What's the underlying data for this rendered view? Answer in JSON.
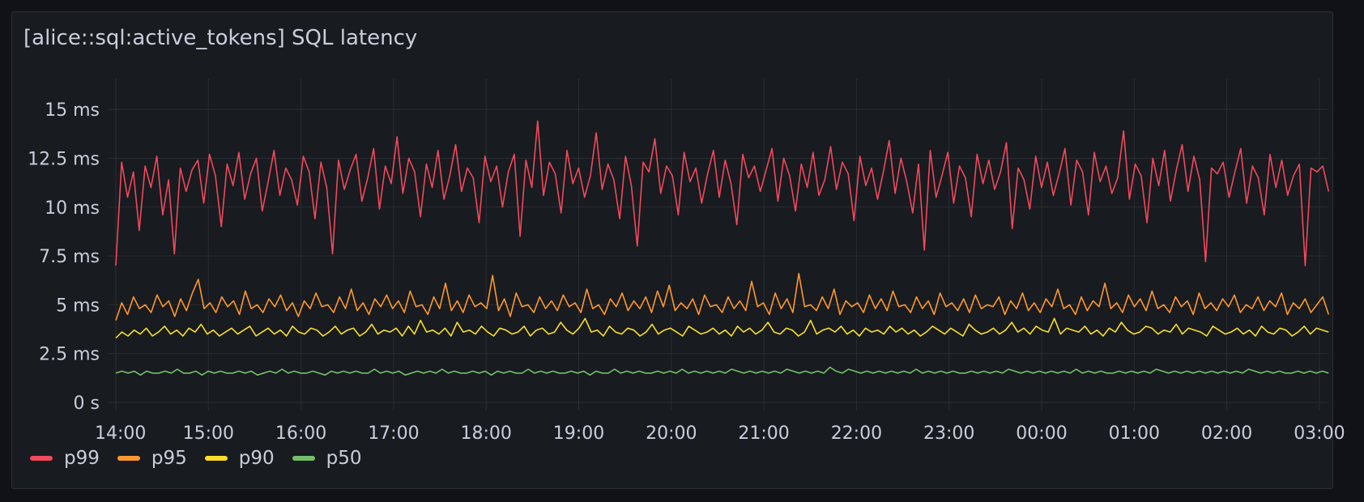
{
  "panel": {
    "title": "[alice::sql:active_tokens] SQL latency"
  },
  "legend": [
    {
      "label": "p99",
      "color": "#f2495c"
    },
    {
      "label": "p95",
      "color": "#ff9830"
    },
    {
      "label": "p90",
      "color": "#fade2a"
    },
    {
      "label": "p50",
      "color": "#73bf69"
    }
  ],
  "chart_data": {
    "type": "line",
    "title": "[alice::sql:active_tokens] SQL latency",
    "x_ticks": [
      "14:00",
      "15:00",
      "16:00",
      "17:00",
      "18:00",
      "19:00",
      "20:00",
      "21:00",
      "22:00",
      "23:00",
      "00:00",
      "01:00",
      "02:00",
      "03:00"
    ],
    "y_ticks": [
      "0 s",
      "2.5 ms",
      "5 ms",
      "7.5 ms",
      "10 ms",
      "12.5 ms",
      "15 ms"
    ],
    "y_tick_values": [
      0,
      2.5,
      5,
      7.5,
      10,
      12.5,
      15
    ],
    "ylim": [
      0,
      16
    ],
    "y_unit": "ms",
    "x_range_hours": [
      0,
      13.1
    ],
    "grid": true,
    "legend_position": "bottom-left",
    "series": [
      {
        "name": "p99",
        "color": "#f2495c",
        "values": [
          7.0,
          12.3,
          10.5,
          11.8,
          8.8,
          12.1,
          11.0,
          12.6,
          9.6,
          11.4,
          7.6,
          12.0,
          10.8,
          11.9,
          12.4,
          10.2,
          12.7,
          11.6,
          9.0,
          12.2,
          11.1,
          12.8,
          10.4,
          11.7,
          12.5,
          9.8,
          11.3,
          12.9,
          10.6,
          12.0,
          11.4,
          10.1,
          12.6,
          11.8,
          9.4,
          12.3,
          11.0,
          7.6,
          12.4,
          10.9,
          11.9,
          12.7,
          10.3,
          11.5,
          13.0,
          9.9,
          12.1,
          11.2,
          13.6,
          10.7,
          12.5,
          11.8,
          9.5,
          12.2,
          11.0,
          12.9,
          10.4,
          11.6,
          13.2,
          10.8,
          12.0,
          11.5,
          9.2,
          12.6,
          11.3,
          12.1,
          10.0,
          11.8,
          12.7,
          8.5,
          12.4,
          11.0,
          14.4,
          10.6,
          12.3,
          11.7,
          9.7,
          12.9,
          11.2,
          12.0,
          10.5,
          11.6,
          13.8,
          10.9,
          12.2,
          11.4,
          9.4,
          12.6,
          11.1,
          8.0,
          12.3,
          11.8,
          13.5,
          10.7,
          12.1,
          11.6,
          9.6,
          12.8,
          11.3,
          12.0,
          10.2,
          11.7,
          12.9,
          10.5,
          12.4,
          11.2,
          9.1,
          12.7,
          11.5,
          12.1,
          10.8,
          11.9,
          13.0,
          10.3,
          12.5,
          11.6,
          9.8,
          12.2,
          11.0,
          12.8,
          10.6,
          11.4,
          13.1,
          10.9,
          12.3,
          11.7,
          9.3,
          12.6,
          11.1,
          12.0,
          10.4,
          11.8,
          13.4,
          10.7,
          12.5,
          11.3,
          9.7,
          12.2,
          7.8,
          12.9,
          10.5,
          11.6,
          12.8,
          10.2,
          12.1,
          11.5,
          9.5,
          12.7,
          11.2,
          12.4,
          10.9,
          11.8,
          13.3,
          8.9,
          12.0,
          11.4,
          9.9,
          12.6,
          11.0,
          12.3,
          10.6,
          11.7,
          13.0,
          10.1,
          12.4,
          11.8,
          9.6,
          12.8,
          11.3,
          12.1,
          10.7,
          11.5,
          13.9,
          10.4,
          12.2,
          11.6,
          9.2,
          12.5,
          11.1,
          12.9,
          10.3,
          11.9,
          13.2,
          10.8,
          12.6,
          11.4,
          7.2,
          12.0,
          11.7,
          12.3,
          10.5,
          11.8,
          13.0,
          10.2,
          12.1,
          11.5,
          9.6,
          12.7,
          11.0,
          12.4,
          10.6,
          11.6,
          12.2,
          7.0,
          12.0,
          11.8,
          12.1,
          10.8
        ]
      },
      {
        "name": "p95",
        "color": "#ff9830",
        "values": [
          4.2,
          5.1,
          4.5,
          5.4,
          4.8,
          5.0,
          4.6,
          5.5,
          4.9,
          5.2,
          4.4,
          5.3,
          4.7,
          5.6,
          6.3,
          4.8,
          5.1,
          4.6,
          5.4,
          4.9,
          5.2,
          4.5,
          5.7,
          4.8,
          5.0,
          4.6,
          5.3,
          4.9,
          5.5,
          4.7,
          5.1,
          4.4,
          5.2,
          4.8,
          5.6,
          4.9,
          5.0,
          4.6,
          5.4,
          4.8,
          5.8,
          4.7,
          5.1,
          4.5,
          5.3,
          4.9,
          5.5,
          4.8,
          5.2,
          4.6,
          5.7,
          4.9,
          5.0,
          4.5,
          5.4,
          4.8,
          6.1,
          4.7,
          5.2,
          4.6,
          5.5,
          4.9,
          5.1,
          4.8,
          6.5,
          4.7,
          5.3,
          4.4,
          5.6,
          4.9,
          5.0,
          4.6,
          5.4,
          4.8,
          5.2,
          4.7,
          5.5,
          4.9,
          5.1,
          4.6,
          5.8,
          4.8,
          5.0,
          4.5,
          5.3,
          4.9,
          5.6,
          4.7,
          5.2,
          4.8,
          5.4,
          4.6,
          5.7,
          4.9,
          6.0,
          4.7,
          5.1,
          4.8,
          5.3,
          4.5,
          5.5,
          4.9,
          5.0,
          4.6,
          5.4,
          4.8,
          5.2,
          4.7,
          6.2,
          4.9,
          5.1,
          4.5,
          5.6,
          4.8,
          5.3,
          4.6,
          6.6,
          4.9,
          5.0,
          4.7,
          5.4,
          4.8,
          5.8,
          4.5,
          5.2,
          4.9,
          5.1,
          4.6,
          5.5,
          4.8,
          5.3,
          4.7,
          5.7,
          4.9,
          5.0,
          4.6,
          5.4,
          4.8,
          5.2,
          4.5,
          5.6,
          4.9,
          5.1,
          4.7,
          5.3,
          4.6,
          5.5,
          4.8,
          5.0,
          4.9,
          5.4,
          4.5,
          5.2,
          4.8,
          5.6,
          4.7,
          5.1,
          4.6,
          5.3,
          4.9,
          5.8,
          4.8,
          5.0,
          4.5,
          5.4,
          4.7,
          5.2,
          4.9,
          6.1,
          4.8,
          5.1,
          4.6,
          5.5,
          4.9,
          5.3,
          4.7,
          5.7,
          4.8,
          5.0,
          4.6,
          5.4,
          4.9,
          5.2,
          4.5,
          5.6,
          4.8,
          5.1,
          4.7,
          5.3,
          4.9,
          5.5,
          4.6,
          5.0,
          4.8,
          5.4,
          4.7,
          5.2,
          4.9,
          5.6,
          4.5,
          5.1,
          4.8,
          5.3,
          4.6,
          5.0,
          5.4,
          4.5
        ]
      },
      {
        "name": "p90",
        "color": "#fade2a",
        "values": [
          3.3,
          3.6,
          3.4,
          3.7,
          3.5,
          3.8,
          3.4,
          3.6,
          3.9,
          3.5,
          3.7,
          3.4,
          3.8,
          3.6,
          4.0,
          3.5,
          3.7,
          3.4,
          3.6,
          3.8,
          3.5,
          3.7,
          3.9,
          3.4,
          3.6,
          3.8,
          3.5,
          3.7,
          3.4,
          3.9,
          3.6,
          3.5,
          3.8,
          3.7,
          3.4,
          3.6,
          3.9,
          3.5,
          3.7,
          3.8,
          3.4,
          3.6,
          4.0,
          3.5,
          3.7,
          3.6,
          3.8,
          3.4,
          3.9,
          3.5,
          4.2,
          3.6,
          3.7,
          3.5,
          3.8,
          3.4,
          4.1,
          3.6,
          3.7,
          3.5,
          3.9,
          3.6,
          3.4,
          3.8,
          3.7,
          3.5,
          3.6,
          3.9,
          3.4,
          3.7,
          3.8,
          3.5,
          3.6,
          4.1,
          3.7,
          3.5,
          3.8,
          4.3,
          3.6,
          3.7,
          3.4,
          3.9,
          3.6,
          3.5,
          3.8,
          3.7,
          3.4,
          3.6,
          4.0,
          3.5,
          3.7,
          3.8,
          3.6,
          3.4,
          3.9,
          3.7,
          3.5,
          3.6,
          3.8,
          3.5,
          3.7,
          3.4,
          3.9,
          3.6,
          3.8,
          3.5,
          3.7,
          4.1,
          3.6,
          3.5,
          3.8,
          3.7,
          3.4,
          3.6,
          4.2,
          3.5,
          3.7,
          3.8,
          3.6,
          3.9,
          3.5,
          3.7,
          3.4,
          3.8,
          3.6,
          3.7,
          3.5,
          3.9,
          3.6,
          3.8,
          3.5,
          3.7,
          3.4,
          3.6,
          3.9,
          3.7,
          3.5,
          3.8,
          3.6,
          3.4,
          4.0,
          3.7,
          3.5,
          3.6,
          3.8,
          3.5,
          3.7,
          4.1,
          3.6,
          3.8,
          3.5,
          3.9,
          3.7,
          3.6,
          4.3,
          3.5,
          3.8,
          3.7,
          3.6,
          3.9,
          3.5,
          3.7,
          3.4,
          3.8,
          3.6,
          4.1,
          3.7,
          3.5,
          3.6,
          3.9,
          3.8,
          3.5,
          3.7,
          3.6,
          4.0,
          3.5,
          3.8,
          3.7,
          3.6,
          3.4,
          3.9,
          3.7,
          3.5,
          3.6,
          3.8,
          3.5,
          3.7,
          3.4,
          3.9,
          3.6,
          3.5,
          3.8,
          3.7,
          3.4,
          3.6,
          3.9,
          3.5,
          3.8,
          3.7,
          3.6
        ]
      },
      {
        "name": "p50",
        "color": "#73bf69",
        "values": [
          1.5,
          1.6,
          1.5,
          1.6,
          1.4,
          1.6,
          1.5,
          1.5,
          1.6,
          1.5,
          1.7,
          1.5,
          1.5,
          1.6,
          1.4,
          1.6,
          1.5,
          1.6,
          1.5,
          1.5,
          1.6,
          1.5,
          1.6,
          1.4,
          1.5,
          1.6,
          1.5,
          1.7,
          1.5,
          1.6,
          1.5,
          1.5,
          1.6,
          1.5,
          1.4,
          1.6,
          1.5,
          1.6,
          1.5,
          1.6,
          1.5,
          1.5,
          1.7,
          1.5,
          1.6,
          1.5,
          1.6,
          1.4,
          1.5,
          1.6,
          1.5,
          1.6,
          1.5,
          1.7,
          1.5,
          1.6,
          1.5,
          1.5,
          1.6,
          1.5,
          1.6,
          1.4,
          1.6,
          1.5,
          1.6,
          1.5,
          1.5,
          1.7,
          1.5,
          1.6,
          1.5,
          1.6,
          1.5,
          1.5,
          1.6,
          1.5,
          1.6,
          1.4,
          1.6,
          1.5,
          1.5,
          1.7,
          1.5,
          1.6,
          1.5,
          1.6,
          1.5,
          1.5,
          1.6,
          1.5,
          1.6,
          1.5,
          1.7,
          1.5,
          1.6,
          1.5,
          1.6,
          1.5,
          1.6,
          1.5,
          1.7,
          1.6,
          1.5,
          1.6,
          1.5,
          1.6,
          1.5,
          1.6,
          1.5,
          1.7,
          1.6,
          1.5,
          1.6,
          1.5,
          1.6,
          1.5,
          1.8,
          1.6,
          1.5,
          1.7,
          1.6,
          1.5,
          1.6,
          1.5,
          1.6,
          1.5,
          1.6,
          1.5,
          1.6,
          1.5,
          1.7,
          1.5,
          1.6,
          1.5,
          1.6,
          1.5,
          1.6,
          1.5,
          1.5,
          1.6,
          1.5,
          1.6,
          1.5,
          1.6,
          1.5,
          1.7,
          1.6,
          1.5,
          1.6,
          1.5,
          1.6,
          1.5,
          1.6,
          1.5,
          1.6,
          1.5,
          1.7,
          1.5,
          1.6,
          1.5,
          1.6,
          1.5,
          1.5,
          1.6,
          1.5,
          1.6,
          1.5,
          1.6,
          1.5,
          1.7,
          1.6,
          1.5,
          1.6,
          1.5,
          1.6,
          1.5,
          1.6,
          1.5,
          1.6,
          1.5,
          1.6,
          1.5,
          1.6,
          1.5,
          1.7,
          1.6,
          1.5,
          1.6,
          1.5,
          1.6,
          1.5,
          1.5,
          1.6,
          1.5,
          1.6,
          1.5,
          1.6,
          1.5
        ]
      }
    ]
  }
}
